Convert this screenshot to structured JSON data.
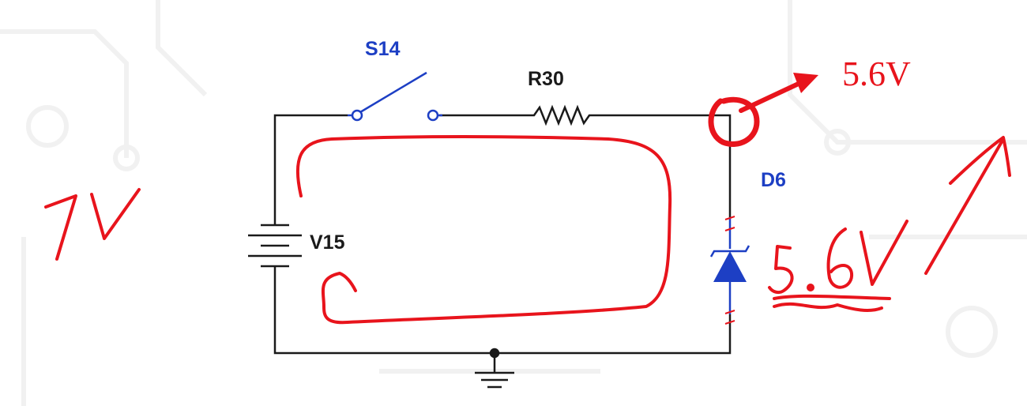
{
  "components": {
    "switch": {
      "label": "S14"
    },
    "resistor": {
      "label": "R30"
    },
    "battery": {
      "label": "V15"
    },
    "zener": {
      "label": "D6"
    }
  },
  "annotations": {
    "typed_voltage": "5.6V",
    "handwritten_source_voltage": "7V",
    "handwritten_zener_voltage": "5.6V"
  },
  "colors": {
    "wire": "#1a1a1a",
    "component_blue": "#1d3fc4",
    "label_blue": "#1d3fc4",
    "annotation_red": "#e8141c",
    "background_pattern": "#f1f1f1"
  },
  "icons": {
    "ground": "ground-symbol",
    "arrow": "red-arrow"
  }
}
